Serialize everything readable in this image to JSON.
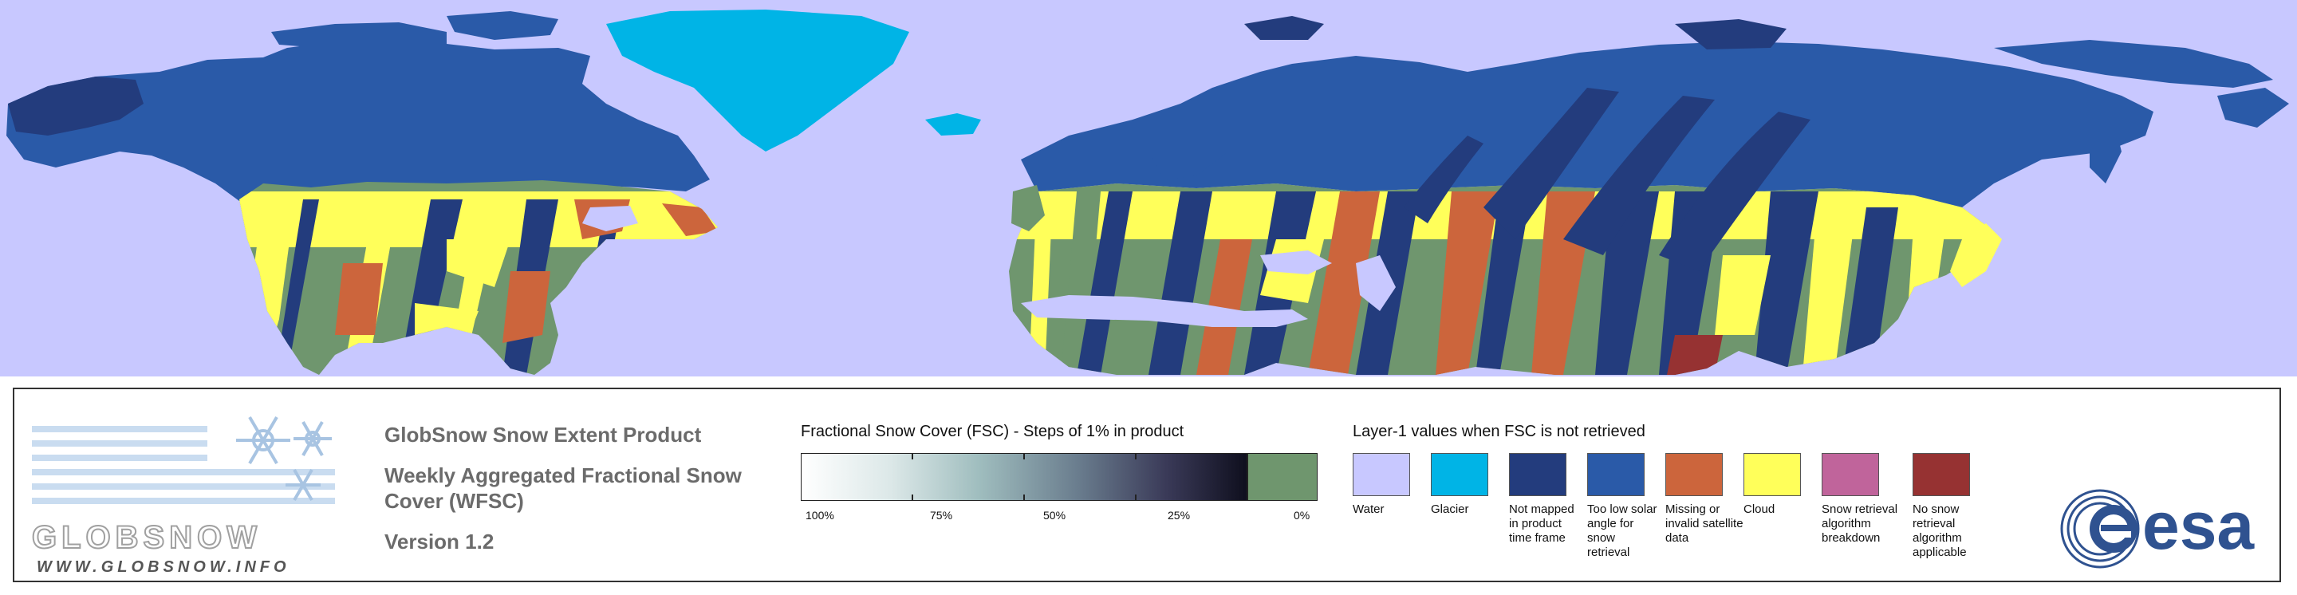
{
  "header": {
    "product_title": "GlobSnow Snow Extent Product",
    "subtitle": "Weekly Aggregated Fractional Snow Cover (WFSC)",
    "version": "Version 1.2"
  },
  "logo": {
    "website": "WWW.GLOBSNOW.INFO",
    "brand": "GLOBSNOW"
  },
  "fsc_scale": {
    "title": "Fractional Snow Cover (FSC) - Steps of 1% in product",
    "ticks": [
      "100%",
      "75%",
      "50%",
      "25%",
      "0%"
    ]
  },
  "layer1": {
    "title": "Layer-1 values when FSC is not retrieved",
    "items": [
      {
        "label": "Water",
        "color": "#c8c8ff"
      },
      {
        "label": "Glacier",
        "color": "#00b4e6"
      },
      {
        "label": "Not mapped in product time frame",
        "color": "#233c7d"
      },
      {
        "label": "Too low solar angle for snow retrieval",
        "color": "#2a5aa8"
      },
      {
        "label": "Missing or invalid satellite data",
        "color": "#cc653c"
      },
      {
        "label": "Cloud",
        "color": "#ffff5a"
      },
      {
        "label": "Snow retrieval algorithm breakdown",
        "color": "#c0649b"
      },
      {
        "label": "No snow retrieval algorithm applicable",
        "color": "#963232"
      }
    ]
  },
  "colors": {
    "background_water": "#c8c8ff",
    "snow_free": "#6f966e",
    "low_solar": "#2a5aa8",
    "not_mapped": "#233c7d",
    "missing": "#cc653c",
    "cloud": "#ffff5a",
    "glacier": "#00b4e6"
  },
  "esa": {
    "text": "esa"
  }
}
